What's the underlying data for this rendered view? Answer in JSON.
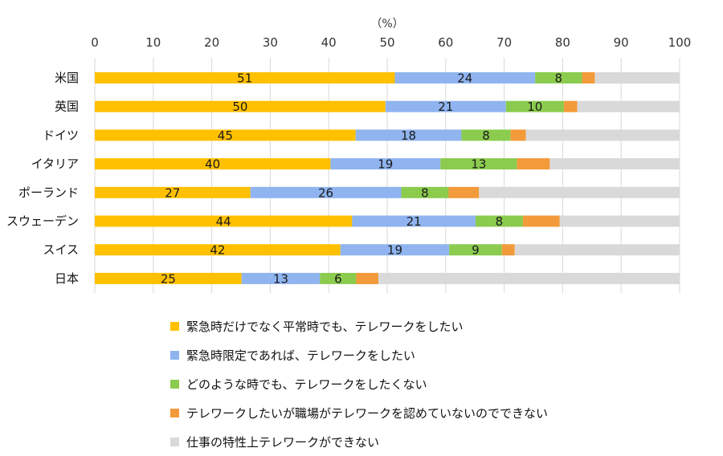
{
  "chart_data": {
    "type": "bar",
    "orientation": "horizontal",
    "stacked": true,
    "unit_label": "（%）",
    "xlim": [
      0,
      100
    ],
    "xticks": [
      0,
      10,
      20,
      30,
      40,
      50,
      60,
      70,
      80,
      90,
      100
    ],
    "categories": [
      "米国",
      "英国",
      "ドイツ",
      "イタリア",
      "ポーランド",
      "スウェーデン",
      "スイス",
      "日本"
    ],
    "series": [
      {
        "name": "緊急時だけでなく平常時でも、テレワークをしたい",
        "color": "#FFC000",
        "values": [
          51.3,
          49.7,
          44.6,
          40.3,
          26.6,
          44.0,
          42.0,
          25.1
        ],
        "labels": [
          "51",
          "50",
          "45",
          "40",
          "27",
          "44",
          "42",
          "25"
        ]
      },
      {
        "name": "緊急時限定であれば、テレワークをしたい",
        "color": "#8FB4F0",
        "values": [
          24.0,
          20.6,
          18.1,
          18.8,
          25.8,
          21.1,
          18.6,
          13.4
        ],
        "labels": [
          "24",
          "21",
          "18",
          "19",
          "26",
          "21",
          "19",
          "13"
        ]
      },
      {
        "name": "どのような時でも、テレワークをしたくない",
        "color": "#8BCB4E",
        "values": [
          8.0,
          9.9,
          8.4,
          13.1,
          8.1,
          8.1,
          9.0,
          6.2
        ],
        "labels": [
          "8",
          "10",
          "8",
          "13",
          "8",
          "8",
          "9",
          "6"
        ]
      },
      {
        "name": "テレワークしたいが職場がテレワークを認めていないのでできない",
        "color": "#F39A3A",
        "values": [
          2.2,
          2.3,
          2.6,
          5.6,
          5.2,
          6.3,
          2.2,
          3.8
        ],
        "labels": [
          "",
          "",
          "",
          "",
          "",
          "",
          "",
          ""
        ]
      },
      {
        "name": "仕事の特性上テレワークができない",
        "color": "#D9D9D9",
        "values": [
          14.5,
          17.5,
          26.3,
          22.2,
          34.3,
          20.5,
          28.2,
          51.5
        ],
        "labels": [
          "",
          "",
          "",
          "",
          "",
          "",
          "",
          ""
        ]
      }
    ],
    "grid": true,
    "legend": "bottom"
  }
}
